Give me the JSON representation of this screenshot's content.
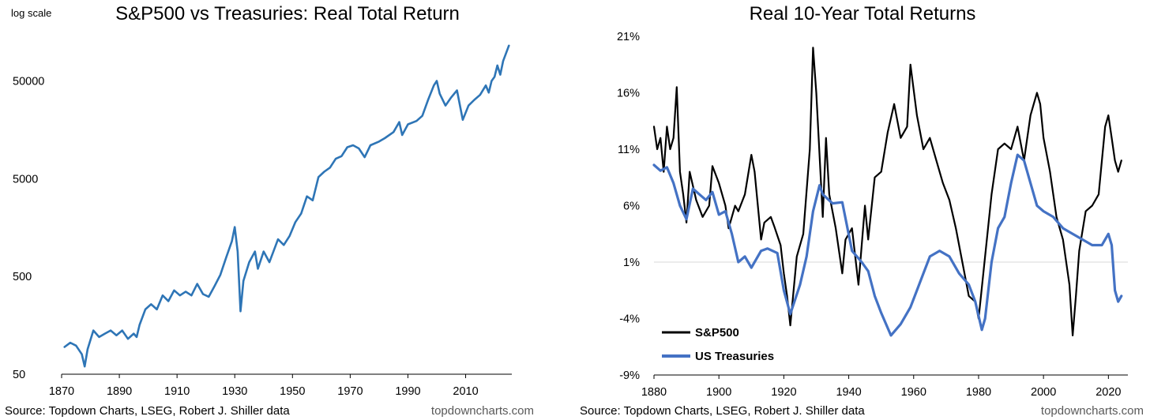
{
  "source_text": "Source: Topdown Charts, LSEG, Robert J. Shiller data",
  "brand_text": "topdowncharts.com",
  "colors": {
    "sp500_left": "#2e75b6",
    "sp500_right": "#000000",
    "treasuries": "#4472c4",
    "zero_line": "#d9d9d9",
    "axis": "#000000"
  },
  "chart_data": [
    {
      "type": "line",
      "title": "S&P500 vs Treasuries: Real Total Return",
      "scale_note": "log scale",
      "xlabel": "",
      "ylabel": "",
      "y_scale": "log",
      "xlim": [
        1870,
        2026
      ],
      "ylim": [
        50,
        200000
      ],
      "x_ticks": [
        "1870",
        "1890",
        "1910",
        "1930",
        "1950",
        "1970",
        "1990",
        "2010"
      ],
      "y_ticks": [
        "50",
        "500",
        "5000",
        "50000"
      ],
      "grid": false,
      "legend": "none",
      "series": [
        {
          "name": "",
          "x": [
            1871,
            1873,
            1875,
            1877,
            1878,
            1879,
            1881,
            1883,
            1885,
            1887,
            1889,
            1891,
            1893,
            1895,
            1896,
            1897,
            1899,
            1901,
            1903,
            1905,
            1907,
            1909,
            1911,
            1913,
            1915,
            1917,
            1919,
            1921,
            1923,
            1925,
            1927,
            1929,
            1930,
            1931,
            1932,
            1933,
            1935,
            1937,
            1938,
            1940,
            1942,
            1945,
            1947,
            1949,
            1951,
            1953,
            1955,
            1957,
            1959,
            1961,
            1963,
            1965,
            1967,
            1969,
            1971,
            1973,
            1975,
            1977,
            1980,
            1982,
            1985,
            1987,
            1988,
            1990,
            1993,
            1995,
            1997,
            1999,
            2000,
            2001,
            2003,
            2005,
            2007,
            2009,
            2011,
            2013,
            2015,
            2017,
            2018,
            2019,
            2020,
            2021,
            2022,
            2023,
            2025
          ],
          "values": [
            95,
            105,
            98,
            80,
            60,
            90,
            140,
            120,
            130,
            140,
            125,
            140,
            115,
            130,
            120,
            160,
            230,
            260,
            230,
            320,
            280,
            360,
            320,
            350,
            320,
            420,
            330,
            310,
            400,
            520,
            780,
            1150,
            1600,
            900,
            220,
            450,
            700,
            900,
            600,
            900,
            700,
            1200,
            1050,
            1300,
            1800,
            2200,
            3300,
            3000,
            5200,
            5900,
            6500,
            8000,
            8500,
            10500,
            11000,
            10200,
            8300,
            11000,
            12000,
            13000,
            15000,
            19000,
            14000,
            18000,
            19500,
            22000,
            32000,
            45000,
            50000,
            37000,
            28000,
            34000,
            40000,
            20000,
            28000,
            32000,
            36000,
            45000,
            38000,
            50000,
            55000,
            72000,
            58000,
            80000,
            115000
          ]
        }
      ]
    },
    {
      "type": "line",
      "title": "Real 10-Year Total Returns",
      "xlabel": "",
      "ylabel": "",
      "xlim": [
        1880,
        2026
      ],
      "ylim": [
        -9,
        21
      ],
      "x_ticks": [
        "1880",
        "1900",
        "1920",
        "1940",
        "1960",
        "1980",
        "2000",
        "2020"
      ],
      "y_ticks": [
        "21%",
        "16%",
        "11%",
        "6%",
        "1%",
        "-4%",
        "-9%"
      ],
      "grid": false,
      "legend": "bottom-left",
      "series": [
        {
          "name": "S&P500",
          "x": [
            1880,
            1881,
            1882,
            1883,
            1884,
            1885,
            1886,
            1887,
            1888,
            1889,
            1890,
            1891,
            1893,
            1895,
            1897,
            1898,
            1900,
            1902,
            1903,
            1905,
            1906,
            1908,
            1910,
            1911,
            1913,
            1914,
            1916,
            1917,
            1919,
            1920,
            1921,
            1922,
            1924,
            1926,
            1928,
            1929,
            1930,
            1932,
            1933,
            1934,
            1936,
            1938,
            1939,
            1941,
            1943,
            1945,
            1946,
            1948,
            1950,
            1952,
            1954,
            1956,
            1958,
            1959,
            1961,
            1963,
            1965,
            1967,
            1969,
            1971,
            1973,
            1975,
            1977,
            1979,
            1980,
            1982,
            1984,
            1986,
            1988,
            1990,
            1992,
            1994,
            1996,
            1998,
            1999,
            2000,
            2002,
            2004,
            2006,
            2008,
            2009,
            2010,
            2011,
            2013,
            2015,
            2017,
            2019,
            2020,
            2021,
            2022,
            2023,
            2024
          ],
          "values": [
            13,
            11,
            12,
            9,
            13,
            11,
            12,
            16.5,
            9,
            7,
            4.5,
            9,
            6.5,
            5,
            6,
            9.5,
            8,
            6,
            4,
            6,
            5.5,
            7,
            10.5,
            9,
            3,
            4.5,
            5,
            4.2,
            2.5,
            0,
            -2,
            -4.6,
            1.5,
            3.5,
            11,
            20,
            16,
            5,
            12,
            7,
            4,
            0,
            3,
            4,
            -1,
            6,
            3,
            8.5,
            9,
            12.5,
            15,
            12,
            13,
            18.5,
            14,
            11,
            12,
            10,
            8,
            6.5,
            4,
            1,
            -2,
            -2.5,
            -4,
            1.5,
            7,
            11,
            11.5,
            11,
            13,
            10,
            14,
            16,
            15,
            12,
            9,
            5,
            3,
            -1,
            -5.5,
            -2,
            2,
            5.5,
            6,
            7,
            13,
            14,
            12,
            10,
            9,
            10
          ]
        },
        {
          "name": "US Treasuries",
          "x": [
            1880,
            1882,
            1884,
            1886,
            1888,
            1890,
            1892,
            1894,
            1896,
            1898,
            1900,
            1902,
            1904,
            1906,
            1908,
            1910,
            1913,
            1915,
            1918,
            1920,
            1922,
            1925,
            1927,
            1929,
            1931,
            1932,
            1935,
            1938,
            1941,
            1944,
            1946,
            1948,
            1950,
            1953,
            1956,
            1959,
            1961,
            1963,
            1965,
            1968,
            1971,
            1974,
            1977,
            1979,
            1981,
            1982,
            1984,
            1986,
            1988,
            1990,
            1992,
            1994,
            1996,
            1998,
            2000,
            2003,
            2006,
            2009,
            2012,
            2015,
            2018,
            2020,
            2021,
            2022,
            2023,
            2024
          ],
          "values": [
            9.6,
            9.1,
            9.4,
            8,
            6,
            4.8,
            7.5,
            7,
            6.5,
            7.2,
            5.2,
            5.5,
            3.5,
            1,
            1.5,
            0.5,
            2,
            2.2,
            1.8,
            -1.5,
            -3.6,
            -1,
            1.5,
            5.5,
            7.8,
            7,
            6.2,
            6.3,
            2,
            1,
            0.2,
            -2,
            -3.5,
            -5.5,
            -4.5,
            -3,
            -1.5,
            0,
            1.5,
            2,
            1.5,
            0,
            -1,
            -2.5,
            -5,
            -4,
            1,
            4,
            5,
            8,
            10.5,
            10,
            8,
            6,
            5.5,
            5,
            4,
            3.5,
            3,
            2.5,
            2.5,
            3.5,
            2.5,
            -1.5,
            -2.5,
            -2
          ]
        }
      ]
    }
  ]
}
